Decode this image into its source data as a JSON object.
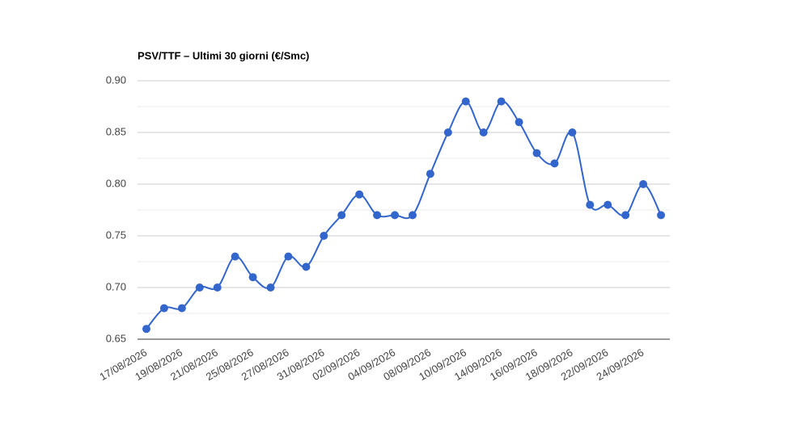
{
  "chart_data": {
    "type": "line",
    "title": "PSV/TTF – Ultimi 30 giorni (€/Smc)",
    "categories": [
      "17/08/2026",
      null,
      "19/08/2026",
      null,
      "21/08/2026",
      null,
      "25/08/2026",
      null,
      "27/08/2026",
      null,
      "31/08/2026",
      null,
      "02/09/2026",
      null,
      "04/09/2026",
      null,
      "08/09/2026",
      null,
      "10/09/2026",
      null,
      "14/09/2026",
      null,
      "16/09/2026",
      null,
      "18/09/2026",
      null,
      "22/09/2026",
      null,
      "24/09/2026",
      null
    ],
    "series": [
      {
        "color": "#3366cc",
        "values": [
          0.66,
          0.68,
          0.68,
          0.7,
          0.7,
          0.73,
          0.71,
          0.7,
          0.73,
          0.72,
          0.75,
          0.77,
          0.79,
          0.77,
          0.77,
          0.77,
          0.81,
          0.85,
          0.88,
          0.85,
          0.88,
          0.86,
          0.83,
          0.82,
          0.85,
          0.78,
          0.78,
          0.77,
          0.8,
          0.77
        ]
      }
    ],
    "ylim": [
      0.65,
      0.9
    ],
    "yticks": [
      {
        "value": 0.65,
        "label": "0.65"
      },
      {
        "value": 0.7,
        "label": "0.70"
      },
      {
        "value": 0.75,
        "label": "0.75"
      },
      {
        "value": 0.8,
        "label": "0.80"
      },
      {
        "value": 0.85,
        "label": "0.85"
      },
      {
        "value": 0.9,
        "label": "0.90"
      }
    ],
    "grid": true,
    "minor_grid": true,
    "smooth": true
  }
}
